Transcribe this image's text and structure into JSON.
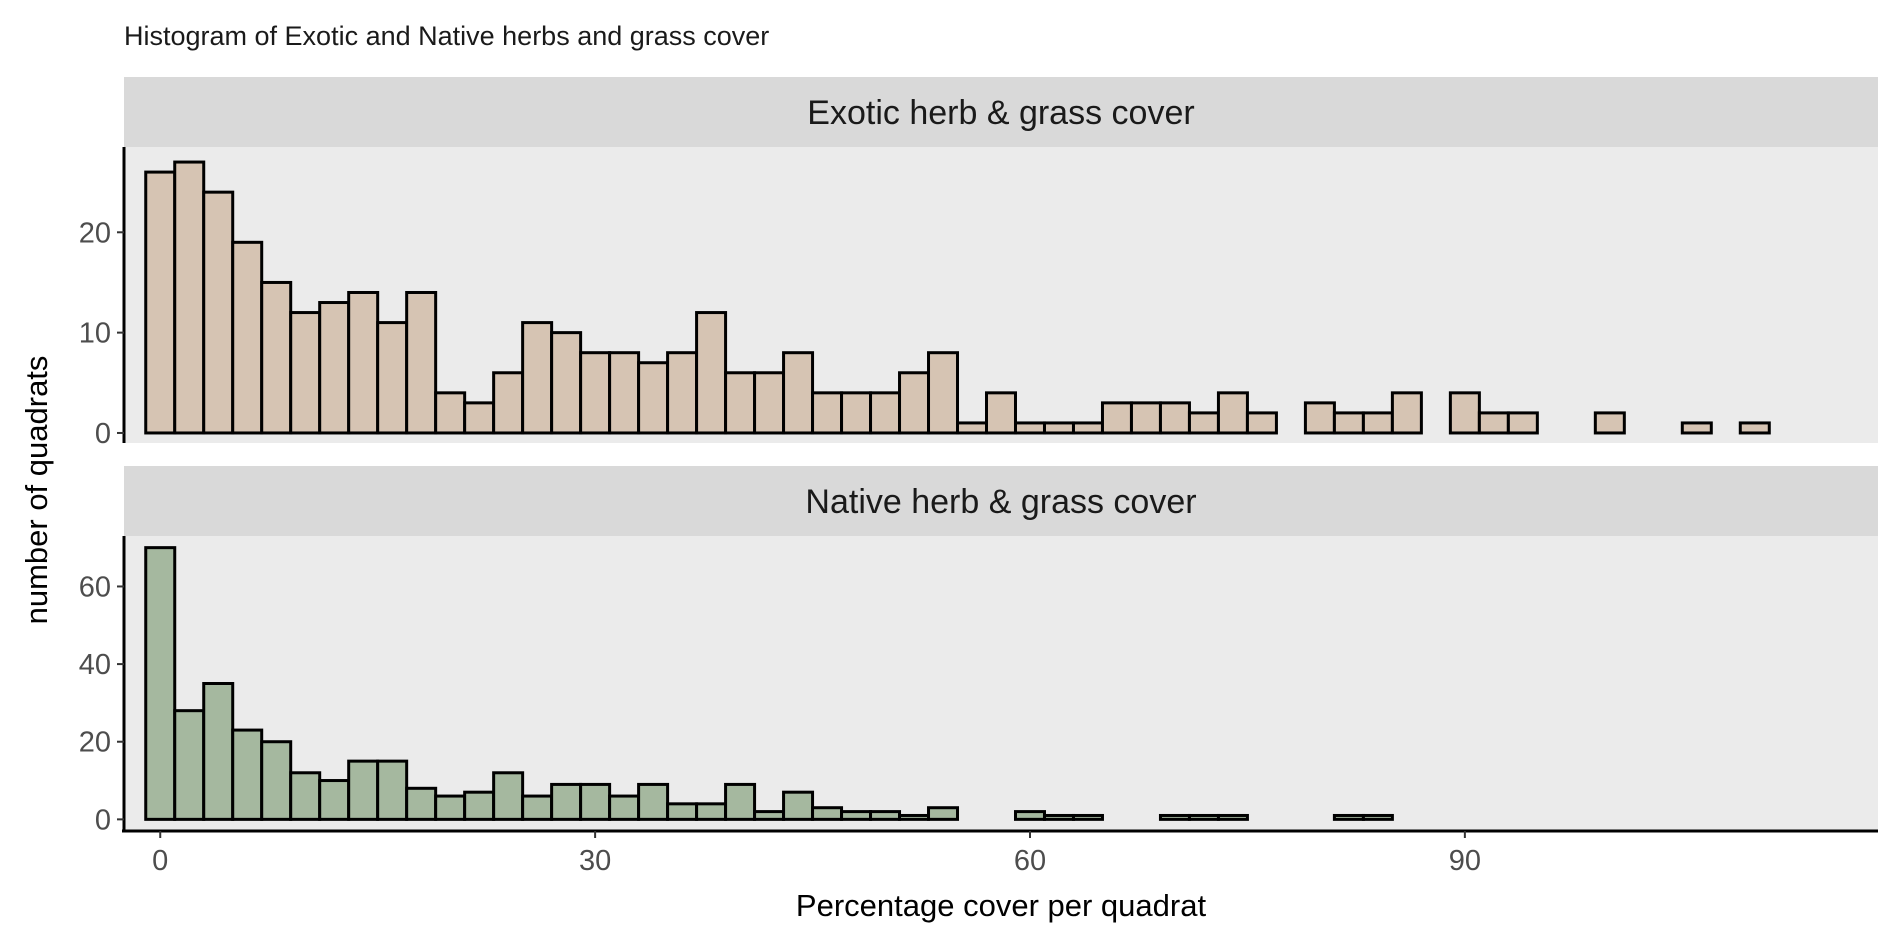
{
  "title": "Histogram of Exotic and Native herbs and grass cover",
  "xlabel": "Percentage cover per quadrat",
  "ylabel": "number of quadrats",
  "chart_data": {
    "type": "bar",
    "title": "Histogram of Exotic and Native herbs and grass cover",
    "xlabel": "Percentage cover per quadrat",
    "ylabel": "number of quadrats",
    "bin_width": 2,
    "xlim": [
      -2.5,
      118.5
    ],
    "x_ticks": [
      0,
      30,
      60,
      90
    ],
    "x_tick_labels": [
      "0",
      "30",
      "60",
      "90"
    ],
    "grid": false,
    "bar_outline_color": "#000000",
    "panel_background": "#ebebeb",
    "strip_background": "#d9d9d9",
    "panels": [
      {
        "strip_label": "Exotic herb & grass cover",
        "fill_color": "#d6c4b3",
        "ylim": [
          -1,
          28.5
        ],
        "y_ticks": [
          0,
          10,
          20
        ],
        "y_tick_labels": [
          "0",
          "10",
          "20"
        ],
        "bin_centers": [
          0,
          2,
          4,
          6,
          8,
          10,
          12,
          14,
          16,
          18,
          20,
          22,
          24,
          26,
          28,
          30,
          32,
          34,
          36,
          38,
          40,
          42,
          44,
          46,
          48,
          50,
          52,
          54,
          56,
          58,
          60,
          62,
          64,
          66,
          68,
          70,
          72,
          74,
          76,
          78,
          80,
          82,
          84,
          86,
          88,
          90,
          92,
          94,
          96,
          98,
          100,
          102,
          104,
          106,
          108,
          110
        ],
        "values": [
          26,
          27,
          24,
          19,
          15,
          12,
          13,
          14,
          11,
          14,
          4,
          3,
          6,
          11,
          10,
          8,
          8,
          7,
          8,
          12,
          6,
          6,
          8,
          4,
          4,
          4,
          6,
          8,
          1,
          4,
          1,
          1,
          1,
          3,
          3,
          3,
          2,
          4,
          2,
          0,
          3,
          2,
          2,
          4,
          0,
          4,
          2,
          2,
          0,
          0,
          2,
          0,
          0,
          1,
          0,
          1
        ]
      },
      {
        "strip_label": "Native herb & grass cover",
        "fill_color": "#a5b89f",
        "ylim": [
          -3,
          73
        ],
        "y_ticks": [
          0,
          20,
          40,
          60
        ],
        "y_tick_labels": [
          "0",
          "20",
          "40",
          "60"
        ],
        "bin_centers": [
          0,
          2,
          4,
          6,
          8,
          10,
          12,
          14,
          16,
          18,
          20,
          22,
          24,
          26,
          28,
          30,
          32,
          34,
          36,
          38,
          40,
          42,
          44,
          46,
          48,
          50,
          52,
          54,
          56,
          58,
          60,
          62,
          64,
          66,
          68,
          70,
          72,
          74,
          76,
          78,
          80,
          82,
          84,
          86,
          88,
          90,
          92,
          94,
          96,
          98,
          100,
          102,
          104,
          106,
          108,
          110
        ],
        "values": [
          70,
          28,
          35,
          23,
          20,
          12,
          10,
          15,
          15,
          8,
          6,
          7,
          12,
          6,
          9,
          9,
          6,
          9,
          4,
          4,
          9,
          2,
          7,
          3,
          2,
          2,
          1,
          3,
          0,
          0,
          2,
          1,
          1,
          0,
          0,
          1,
          1,
          1,
          0,
          0,
          0,
          1,
          1,
          0,
          0,
          0,
          0,
          0,
          0,
          0,
          0,
          0,
          0,
          0,
          0,
          0
        ]
      }
    ]
  }
}
